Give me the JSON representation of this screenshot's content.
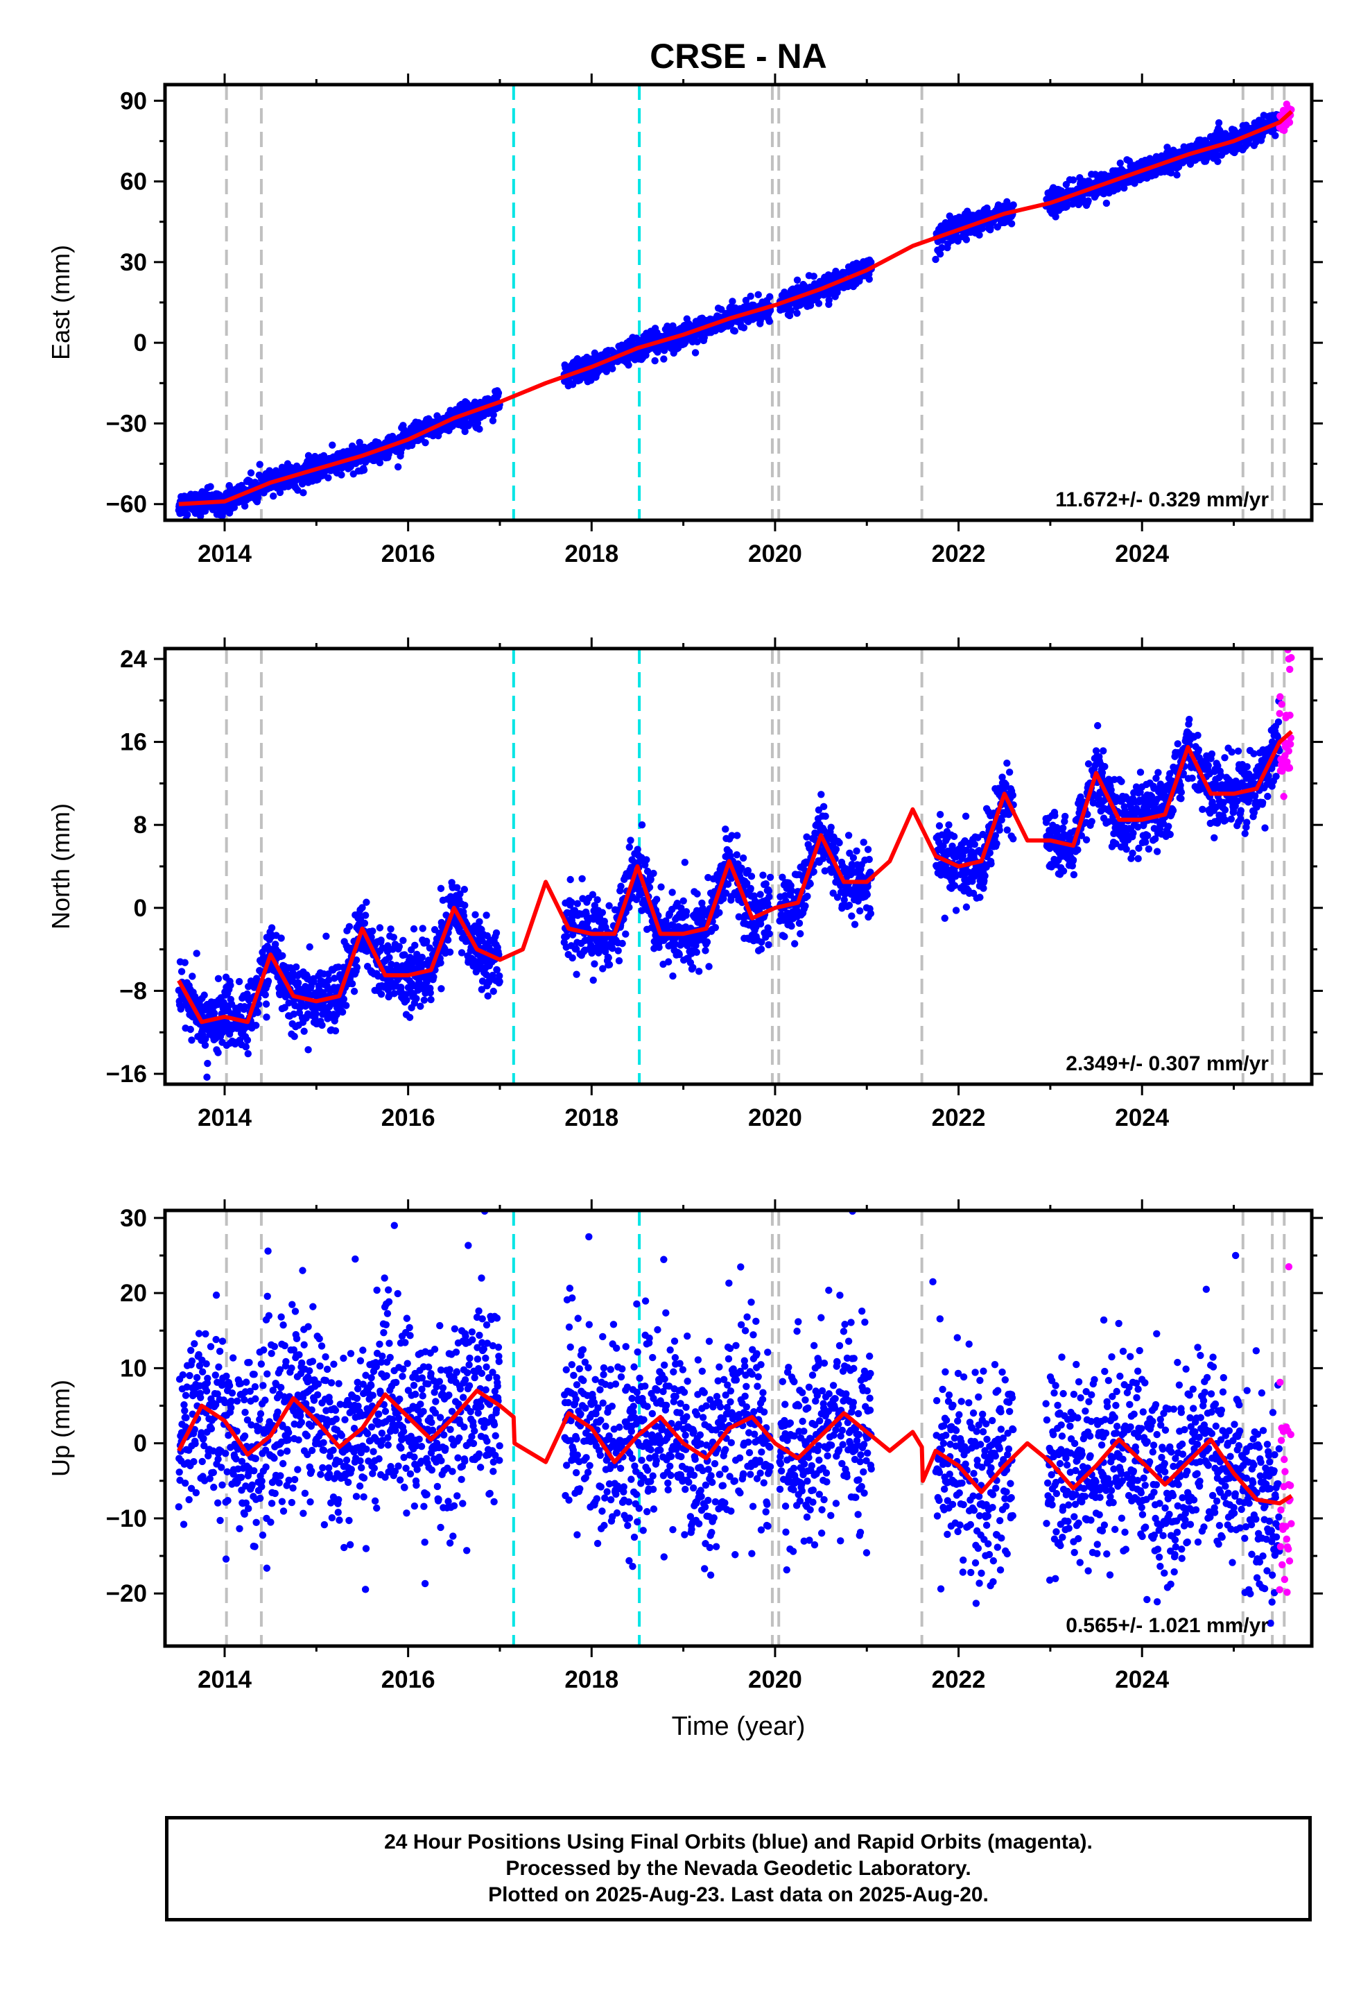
{
  "chart_data": [
    {
      "type": "scatter",
      "title": "CRSE - NA",
      "ylabel": "East (mm)",
      "xlabel": "",
      "xlim": [
        2013.35,
        2025.85
      ],
      "ylim": [
        -66,
        96
      ],
      "xticks": [
        2014,
        2016,
        2018,
        2020,
        2022,
        2024
      ],
      "yticks": [
        -60,
        -30,
        0,
        30,
        60,
        90
      ],
      "grid": false,
      "rate_label": "11.672+/- 0.329 mm/yr",
      "events": {
        "gray_dashed": [
          2014.02,
          2014.4,
          2019.97,
          2020.04,
          2021.6,
          2025.1,
          2025.42,
          2025.55
        ],
        "cyan_dashed": [
          2017.15,
          2018.52
        ]
      },
      "data_gaps": [
        [
          2017.0,
          2017.7
        ],
        [
          2019.95,
          2020.05
        ],
        [
          2021.05,
          2021.75
        ],
        [
          2022.6,
          2022.95
        ]
      ],
      "series": [
        {
          "name": "Final Orbits",
          "color": "#0000ff",
          "kind": "points",
          "x_range": [
            2013.5,
            2025.5
          ],
          "noise": 2.2,
          "outliers": [
            [
              2021.75,
              31
            ],
            [
              2021.8,
              33
            ]
          ]
        },
        {
          "name": "Rapid Orbits",
          "color": "#ff00ff",
          "kind": "points",
          "x_range": [
            2025.5,
            2025.63
          ],
          "noise": 2.8,
          "outliers": []
        },
        {
          "name": "Model",
          "color": "#ff0000",
          "kind": "line",
          "x": [
            2013.5,
            2014.0,
            2014.5,
            2015.0,
            2015.5,
            2016.0,
            2016.5,
            2017.0,
            2017.5,
            2018.0,
            2018.5,
            2019.0,
            2019.5,
            2020.0,
            2020.5,
            2021.0,
            2021.5,
            2022.0,
            2022.5,
            2023.0,
            2023.5,
            2024.0,
            2024.5,
            2025.0,
            2025.5,
            2025.63
          ],
          "y": [
            -60,
            -59,
            -52,
            -47,
            -42,
            -36,
            -28,
            -22,
            -15,
            -9,
            -2,
            3,
            9,
            14,
            20,
            27,
            36,
            42,
            48,
            52,
            58,
            64,
            70,
            75,
            82,
            86
          ]
        }
      ]
    },
    {
      "type": "scatter",
      "title": "",
      "ylabel": "North (mm)",
      "xlabel": "",
      "xlim": [
        2013.35,
        2025.85
      ],
      "ylim": [
        -17,
        25
      ],
      "xticks": [
        2014,
        2016,
        2018,
        2020,
        2022,
        2024
      ],
      "yticks": [
        -16,
        -8,
        0,
        8,
        16,
        24
      ],
      "grid": false,
      "rate_label": "2.349+/- 0.307 mm/yr",
      "events": {
        "gray_dashed": [
          2014.02,
          2014.4,
          2019.97,
          2020.04,
          2021.6,
          2025.1,
          2025.42,
          2025.55
        ],
        "cyan_dashed": [
          2017.15,
          2018.52
        ]
      },
      "data_gaps": [
        [
          2017.0,
          2017.7
        ],
        [
          2019.95,
          2020.05
        ],
        [
          2021.05,
          2021.75
        ],
        [
          2022.6,
          2022.95
        ]
      ],
      "series": [
        {
          "name": "Final Orbits",
          "color": "#0000ff",
          "kind": "points",
          "x_range": [
            2013.5,
            2025.5
          ],
          "noise": 1.6,
          "outliers": [
            [
              2018.55,
              8
            ],
            [
              2021.8,
              9
            ],
            [
              2021.85,
              -1
            ]
          ]
        },
        {
          "name": "Rapid Orbits",
          "color": "#ff00ff",
          "kind": "points",
          "x_range": [
            2025.5,
            2025.63
          ],
          "noise": 3.0,
          "outliers": [
            [
              2025.6,
              24
            ],
            [
              2025.61,
              23
            ]
          ]
        },
        {
          "name": "Model",
          "color": "#ff0000",
          "kind": "line",
          "x": [
            2013.5,
            2013.75,
            2014.0,
            2014.25,
            2014.5,
            2014.75,
            2015.0,
            2015.25,
            2015.5,
            2015.75,
            2016.0,
            2016.25,
            2016.5,
            2016.75,
            2017.0,
            2017.25,
            2017.5,
            2017.75,
            2018.0,
            2018.25,
            2018.5,
            2018.75,
            2019.0,
            2019.25,
            2019.5,
            2019.75,
            2020.0,
            2020.25,
            2020.5,
            2020.75,
            2021.0,
            2021.25,
            2021.5,
            2021.75,
            2022.0,
            2022.25,
            2022.5,
            2022.75,
            2023.0,
            2023.25,
            2023.5,
            2023.75,
            2024.0,
            2024.25,
            2024.5,
            2024.75,
            2025.0,
            2025.25,
            2025.5,
            2025.63
          ],
          "y": [
            -7,
            -11,
            -10.5,
            -11,
            -4.5,
            -8.5,
            -9,
            -8.5,
            -2,
            -6.5,
            -6.5,
            -6,
            0,
            -4,
            -5,
            -4,
            2.5,
            -2,
            -2.5,
            -2.5,
            4,
            -2.5,
            -2.5,
            -2,
            4.5,
            -1,
            0,
            0.5,
            7,
            2.5,
            2.5,
            4.5,
            9.5,
            5,
            4,
            4.5,
            11,
            6.5,
            6.5,
            6,
            13,
            8.5,
            8.5,
            9,
            15.5,
            11,
            11,
            11.5,
            16,
            17
          ]
        }
      ]
    },
    {
      "type": "scatter",
      "title": "",
      "ylabel": "Up (mm)",
      "xlabel": "Time (year)",
      "xlim": [
        2013.35,
        2025.85
      ],
      "ylim": [
        -27,
        31
      ],
      "xticks": [
        2014,
        2016,
        2018,
        2020,
        2022,
        2024
      ],
      "yticks": [
        -20,
        -10,
        0,
        10,
        20,
        30
      ],
      "grid": false,
      "rate_label": "0.565+/- 1.021 mm/yr",
      "events": {
        "gray_dashed": [
          2014.02,
          2014.4,
          2019.97,
          2020.04,
          2021.6,
          2025.1,
          2025.42,
          2025.55
        ],
        "cyan_dashed": [
          2017.15,
          2018.52
        ]
      },
      "data_gaps": [
        [
          2017.0,
          2017.7
        ],
        [
          2019.95,
          2020.05
        ],
        [
          2021.05,
          2021.75
        ],
        [
          2022.6,
          2022.95
        ]
      ],
      "series": [
        {
          "name": "Final Orbits",
          "color": "#0000ff",
          "kind": "points",
          "x_range": [
            2013.5,
            2025.5
          ],
          "noise": 6.5,
          "outliers": [
            [
              2015.85,
              29
            ],
            [
              2017.97,
              27.5
            ],
            [
              2025.02,
              25
            ],
            [
              2021.72,
              21.5
            ],
            [
              2024.7,
              20.5
            ],
            [
              2016.8,
              22
            ],
            [
              2014.85,
              23
            ]
          ]
        },
        {
          "name": "Rapid Orbits",
          "color": "#ff00ff",
          "kind": "points",
          "x_range": [
            2025.5,
            2025.63
          ],
          "noise": 7.0,
          "outliers": [
            [
              2025.6,
              23.5
            ]
          ]
        },
        {
          "name": "Model",
          "color": "#ff0000",
          "kind": "line",
          "x": [
            2013.5,
            2013.75,
            2014.0,
            2014.25,
            2014.5,
            2014.75,
            2015.0,
            2015.25,
            2015.5,
            2015.75,
            2016.0,
            2016.25,
            2016.5,
            2016.75,
            2017.0,
            2017.15,
            2017.16,
            2017.5,
            2017.75,
            2018.0,
            2018.25,
            2018.5,
            2018.75,
            2019.0,
            2019.25,
            2019.5,
            2019.75,
            2020.0,
            2020.25,
            2020.5,
            2020.75,
            2021.0,
            2021.25,
            2021.5,
            2021.6,
            2021.61,
            2021.75,
            2022.0,
            2022.25,
            2022.5,
            2022.75,
            2023.0,
            2023.25,
            2023.5,
            2023.75,
            2024.0,
            2024.25,
            2024.5,
            2024.75,
            2025.0,
            2025.25,
            2025.5,
            2025.63
          ],
          "y": [
            -1,
            5,
            3,
            -1.5,
            1,
            6,
            3,
            -0.5,
            2,
            6.5,
            3.5,
            0.5,
            3.5,
            7,
            5,
            3.5,
            0,
            -2.5,
            4,
            2,
            -2.5,
            1,
            3.5,
            0,
            -2,
            2,
            3.5,
            0,
            -2,
            1,
            4,
            1.5,
            -1,
            1.5,
            -0.5,
            -5,
            -1,
            -3,
            -6.5,
            -3,
            0,
            -2.5,
            -6,
            -3,
            0.5,
            -2.5,
            -5.5,
            -2.5,
            0.5,
            -4,
            -7.5,
            -8,
            -7
          ]
        }
      ]
    }
  ],
  "footer": {
    "line1": "24 Hour Positions Using Final Orbits (blue) and Rapid Orbits (magenta).",
    "line2": "Processed by the Nevada Geodetic Laboratory.",
    "line3": "Plotted on 2025-Aug-23. Last data on 2025-Aug-20."
  }
}
